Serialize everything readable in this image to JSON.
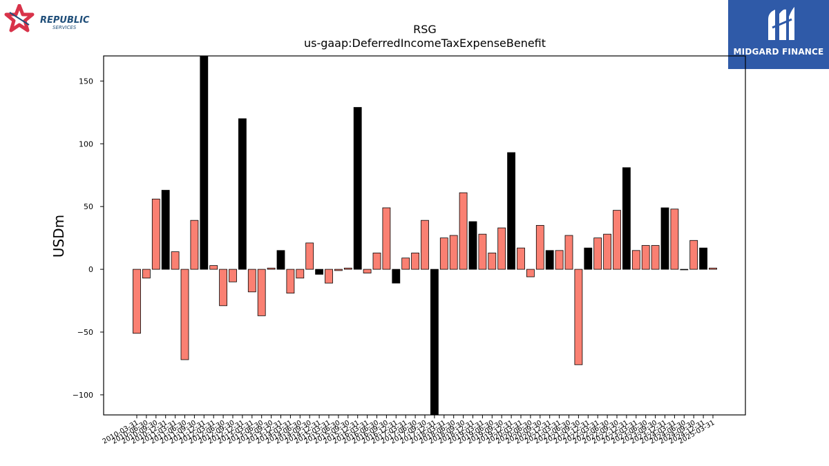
{
  "logos": {
    "left": {
      "text_main": "REPUBLIC",
      "text_sub": "SERVICES",
      "color_red": "#d8334a",
      "color_blue": "#1f4e79"
    },
    "right": {
      "text": "MIDGARD FINANCE",
      "bg": "#2f5aa8"
    }
  },
  "chart_data": {
    "type": "bar",
    "title": "RSG",
    "subtitle": "us-gaap:DeferredIncomeTaxExpenseBenefit",
    "ylabel": "USDm",
    "xlabel": "",
    "ylim": [
      -116,
      170
    ],
    "yticks": [
      -100,
      -50,
      0,
      50,
      100,
      150
    ],
    "grid": false,
    "colors": {
      "default": "#fa8072",
      "highlight": "#000000",
      "edge": "#000000"
    },
    "categories": [
      "2010-03-31",
      "2010-06-30",
      "2010-09-30",
      "2010-12-31",
      "2011-03-31",
      "2011-06-30",
      "2011-09-30",
      "2011-12-31",
      "2012-03-31",
      "2012-06-30",
      "2012-09-30",
      "2012-12-31",
      "2013-03-31",
      "2013-06-30",
      "2013-09-30",
      "2013-12-31",
      "2014-03-31",
      "2014-06-30",
      "2014-09-30",
      "2014-12-31",
      "2015-03-31",
      "2015-06-30",
      "2015-09-30",
      "2015-12-31",
      "2016-03-31",
      "2016-06-30",
      "2016-09-30",
      "2016-12-31",
      "2017-03-31",
      "2017-06-30",
      "2017-09-30",
      "2017-12-31",
      "2018-03-31",
      "2018-06-30",
      "2018-09-30",
      "2018-12-31",
      "2019-03-31",
      "2019-06-30",
      "2019-09-30",
      "2019-12-31",
      "2020-03-31",
      "2020-06-30",
      "2020-09-30",
      "2020-12-31",
      "2021-03-31",
      "2021-06-30",
      "2021-09-30",
      "2021-12-31",
      "2022-03-31",
      "2022-06-30",
      "2022-09-30",
      "2022-12-31",
      "2023-03-31",
      "2023-06-30",
      "2023-09-30",
      "2023-12-31",
      "2024-03-31",
      "2024-06-30",
      "2024-09-30",
      "2024-12-31",
      "2025-03-31"
    ],
    "values": [
      -51,
      -7,
      56,
      63,
      14,
      -72,
      39,
      170,
      3,
      -29,
      -10,
      120,
      -18,
      -37,
      1,
      15,
      -19,
      -7,
      21,
      -4,
      -11,
      -1,
      1,
      129,
      -3,
      13,
      49,
      -11,
      9,
      13,
      39,
      -116,
      25,
      27,
      61,
      38,
      28,
      13,
      33,
      93,
      17,
      -6,
      35,
      15,
      15,
      27,
      -76,
      17,
      25,
      28,
      47,
      81,
      15,
      19,
      19,
      49,
      48,
      -0.3,
      23,
      17,
      1
    ],
    "highlight": [
      false,
      false,
      false,
      true,
      false,
      false,
      false,
      true,
      false,
      false,
      false,
      true,
      false,
      false,
      false,
      true,
      false,
      false,
      false,
      true,
      false,
      false,
      false,
      true,
      false,
      false,
      false,
      true,
      false,
      false,
      false,
      true,
      false,
      false,
      false,
      true,
      false,
      false,
      false,
      true,
      false,
      false,
      false,
      true,
      false,
      false,
      false,
      true,
      false,
      false,
      false,
      true,
      false,
      false,
      false,
      true,
      false,
      false,
      false,
      true,
      false
    ]
  }
}
